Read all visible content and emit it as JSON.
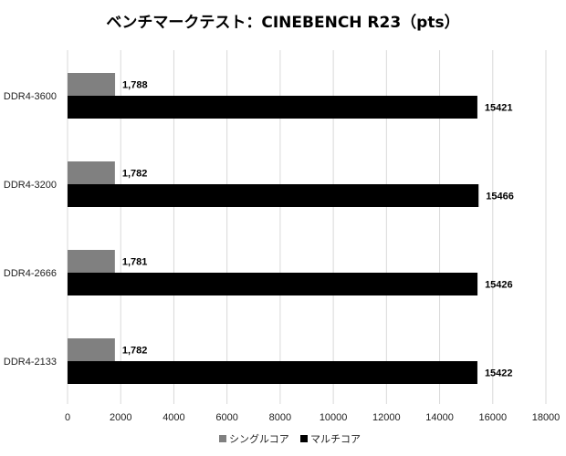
{
  "chart_data": {
    "type": "bar",
    "orientation": "horizontal",
    "title": "ベンチマークテスト：CINEBENCH R23（pts）",
    "categories": [
      "DDR4-3600",
      "DDR4-3200",
      "DDR4-2666",
      "DDR4-2133"
    ],
    "series": [
      {
        "name": "シングルコア",
        "color": "#808080",
        "values": [
          1788,
          1782,
          1781,
          1782
        ],
        "labels": [
          "1,788",
          "1,782",
          "1,781",
          "1,782"
        ]
      },
      {
        "name": "マルチコア",
        "color": "#000000",
        "values": [
          15421,
          15466,
          15426,
          15422
        ],
        "labels": [
          "15421",
          "15466",
          "15426",
          "15422"
        ]
      }
    ],
    "xlim": [
      0,
      18000
    ],
    "xticks": [
      0,
      2000,
      4000,
      6000,
      8000,
      10000,
      12000,
      14000,
      16000,
      18000
    ],
    "xtick_labels": [
      "0",
      "2000",
      "4000",
      "6000",
      "8000",
      "10000",
      "12000",
      "14000",
      "16000",
      "18000"
    ],
    "grid": "vertical",
    "legend_position": "bottom",
    "xlabel": "",
    "ylabel": ""
  }
}
